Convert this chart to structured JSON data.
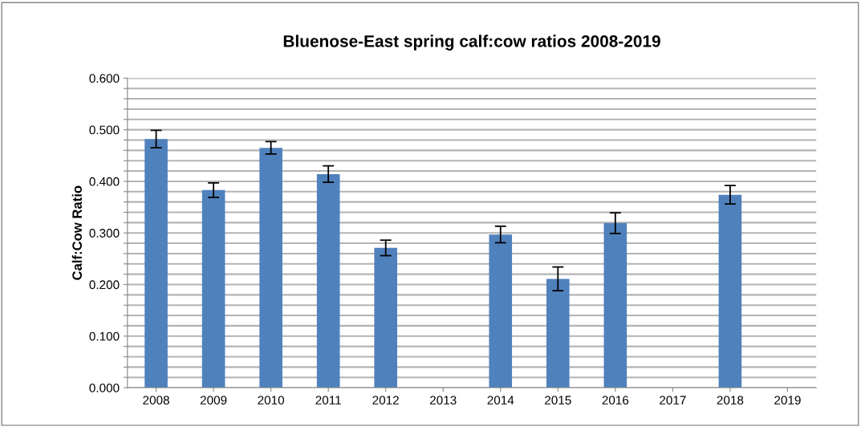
{
  "chart_data": {
    "type": "bar",
    "title": "Bluenose-East spring calf:cow ratios 2008-2019",
    "ylabel": "Calf:Cow Ratio",
    "categories": [
      "2008",
      "2009",
      "2010",
      "2011",
      "2012",
      "2013",
      "2014",
      "2015",
      "2016",
      "2017",
      "2018",
      "2019"
    ],
    "values": [
      0.482,
      0.383,
      0.465,
      0.414,
      0.271,
      0,
      0.297,
      0.211,
      0.319,
      0,
      0.374,
      0
    ],
    "errors": [
      0.017,
      0.014,
      0.012,
      0.016,
      0.015,
      null,
      0.016,
      0.023,
      0.02,
      null,
      0.018,
      null
    ],
    "color": "#4f81bd",
    "ylim": [
      0,
      0.6
    ],
    "yticks": [
      {
        "value": 0,
        "label": "0.000"
      },
      {
        "value": 0.02,
        "label": null
      },
      {
        "value": 0.04,
        "label": null
      },
      {
        "value": 0.06,
        "label": null
      },
      {
        "value": 0.08,
        "label": null
      },
      {
        "value": 0.1,
        "label": "0.100"
      },
      {
        "value": 0.12,
        "label": null
      },
      {
        "value": 0.14,
        "label": null
      },
      {
        "value": 0.16,
        "label": null
      },
      {
        "value": 0.18,
        "label": null
      },
      {
        "value": 0.2,
        "label": "0.200"
      },
      {
        "value": 0.22,
        "label": null
      },
      {
        "value": 0.24,
        "label": null
      },
      {
        "value": 0.26,
        "label": null
      },
      {
        "value": 0.28,
        "label": null
      },
      {
        "value": 0.3,
        "label": "0.300"
      },
      {
        "value": 0.32,
        "label": null
      },
      {
        "value": 0.34,
        "label": null
      },
      {
        "value": 0.36,
        "label": null
      },
      {
        "value": 0.38,
        "label": null
      },
      {
        "value": 0.4,
        "label": "0.400"
      },
      {
        "value": 0.42,
        "label": null
      },
      {
        "value": 0.44,
        "label": null
      },
      {
        "value": 0.46,
        "label": null
      },
      {
        "value": 0.48,
        "label": null
      },
      {
        "value": 0.5,
        "label": "0.500"
      },
      {
        "value": 0.52,
        "label": null
      },
      {
        "value": 0.54,
        "label": null
      },
      {
        "value": 0.56,
        "label": null
      },
      {
        "value": 0.58,
        "label": null
      },
      {
        "value": 0.6,
        "label": "0.600"
      }
    ],
    "grid": "y"
  }
}
